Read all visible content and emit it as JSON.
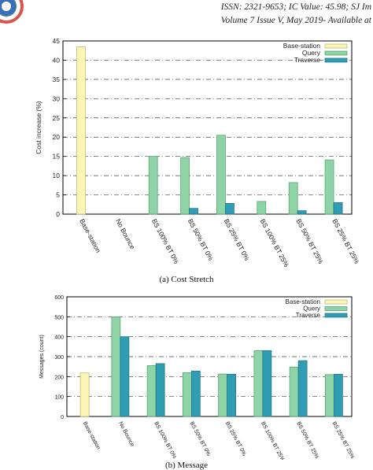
{
  "header": {
    "line1": "ISSN: 2321-9653; IC Value: 45.98; SJ Im",
    "line2": "Volume 7 Issue V, May 2019- Available at"
  },
  "captions": {
    "chart1": "(a)   Cost Stretch",
    "chart2": "(b) Message"
  },
  "colors": {
    "base_station": "#fbf6b4",
    "query": "#8fd4a6",
    "traverse": "#2f9db3",
    "grid": "#444444",
    "logo_ring": "#d9534f"
  },
  "logo": {
    "icon": "journal-seal-icon"
  },
  "chart_data": [
    {
      "type": "bar",
      "ylabel": "Cost increase (%)",
      "ylim": [
        0,
        45
      ],
      "yticks": [
        0,
        5,
        10,
        15,
        20,
        25,
        30,
        35,
        40,
        45
      ],
      "grid": true,
      "legend_position": "top-right",
      "categories": [
        "Base-station",
        "No Bounce",
        "BS 100% BT 0%",
        "BS 50% BT 0%",
        "BS 25% BT 0%",
        "BS 100% BT 25%",
        "BS 50% BT 25%",
        "BS 25% BT 25%"
      ],
      "series": [
        {
          "name": "Base-station",
          "values": [
            43.5,
            0,
            0,
            0,
            0,
            0,
            0,
            0
          ]
        },
        {
          "name": "Query",
          "values": [
            0,
            0,
            15,
            14.7,
            20.5,
            3.3,
            8.2,
            14.1
          ]
        },
        {
          "name": "Traverse",
          "values": [
            0,
            0,
            0,
            1.5,
            2.8,
            0,
            0.9,
            3.0
          ]
        }
      ]
    },
    {
      "type": "bar",
      "ylabel": "Messages (count)",
      "ylim": [
        0,
        600
      ],
      "yticks": [
        0,
        100,
        200,
        300,
        400,
        500,
        600
      ],
      "grid": true,
      "legend_position": "top-right",
      "categories": [
        "Base-station",
        "No Bounce",
        "BS 100% BT 0%",
        "BS 50% BT 0%",
        "BS 25% BT 0%",
        "BS 100% BT 25%",
        "BS 50% BT 25%",
        "BS 25% BT 25%"
      ],
      "series": [
        {
          "name": "Base-station",
          "values": [
            218,
            0,
            0,
            0,
            0,
            0,
            0,
            0
          ]
        },
        {
          "name": "Query",
          "values": [
            0,
            500,
            255,
            220,
            213,
            330,
            248,
            210
          ]
        },
        {
          "name": "Traverse",
          "values": [
            0,
            400,
            265,
            228,
            212,
            330,
            280,
            212
          ]
        }
      ]
    }
  ]
}
